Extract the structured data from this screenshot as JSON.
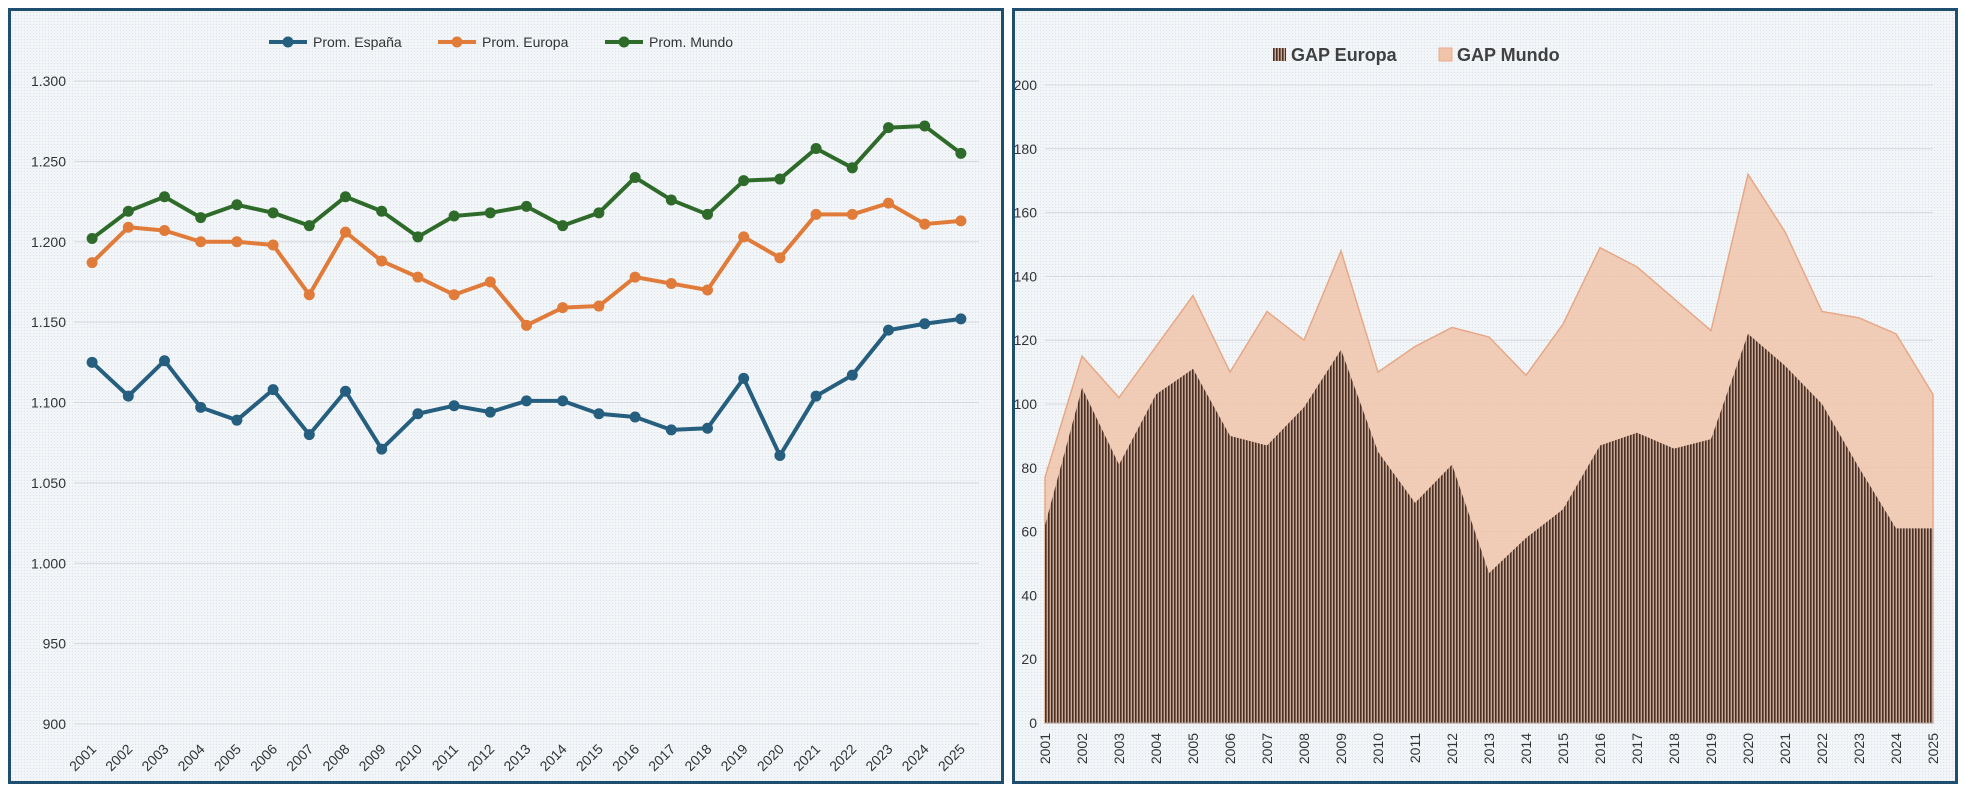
{
  "chart_data": [
    {
      "type": "line",
      "title": "",
      "xlabel": "",
      "ylabel": "",
      "ylim": [
        900,
        1300
      ],
      "yticks": [
        "1.300",
        "1.250",
        "1.200",
        "1.150",
        "1.100",
        "1.050",
        "1.000",
        "950",
        "900"
      ],
      "ytick_values": [
        1300,
        1250,
        1200,
        1150,
        1100,
        1050,
        1000,
        950,
        900
      ],
      "categories": [
        "2001",
        "2002",
        "2003",
        "2004",
        "2005",
        "2006",
        "2007",
        "2008",
        "2009",
        "2010",
        "2011",
        "2012",
        "2013",
        "2014",
        "2015",
        "2016",
        "2017",
        "2018",
        "2019",
        "2020",
        "2021",
        "2022",
        "2023",
        "2024",
        "2025"
      ],
      "legend_position": "top",
      "series": [
        {
          "name": "Prom. España",
          "color": "#255e7e",
          "values": [
            1125,
            1104,
            1126,
            1097,
            1089,
            1108,
            1080,
            1107,
            1071,
            1093,
            1098,
            1094,
            1101,
            1101,
            1093,
            1091,
            1083,
            1084,
            1115,
            1067,
            1104,
            1117,
            1145,
            1149,
            1152
          ]
        },
        {
          "name": "Prom. Europa",
          "color": "#e07b39",
          "values": [
            1187,
            1209,
            1207,
            1200,
            1200,
            1198,
            1167,
            1206,
            1188,
            1178,
            1167,
            1175,
            1148,
            1159,
            1160,
            1178,
            1174,
            1170,
            1203,
            1190,
            1217,
            1217,
            1224,
            1211,
            1213
          ]
        },
        {
          "name": "Prom. Mundo",
          "color": "#2e6b2a",
          "values": [
            1202,
            1219,
            1228,
            1215,
            1223,
            1218,
            1210,
            1228,
            1219,
            1203,
            1216,
            1218,
            1222,
            1210,
            1218,
            1240,
            1226,
            1217,
            1238,
            1239,
            1258,
            1246,
            1271,
            1272,
            1255
          ]
        }
      ]
    },
    {
      "type": "area",
      "title": "",
      "xlabel": "",
      "ylabel": "",
      "ylim": [
        0,
        200
      ],
      "yticks": [
        "200",
        "180",
        "160",
        "140",
        "120",
        "100",
        "80",
        "60",
        "40",
        "20",
        "0"
      ],
      "ytick_values": [
        200,
        180,
        160,
        140,
        120,
        100,
        80,
        60,
        40,
        20,
        0
      ],
      "categories": [
        "2001",
        "2002",
        "2003",
        "2004",
        "2005",
        "2006",
        "2007",
        "2008",
        "2009",
        "2010",
        "2011",
        "2012",
        "2013",
        "2014",
        "2015",
        "2016",
        "2017",
        "2018",
        "2019",
        "2020",
        "2021",
        "2022",
        "2023",
        "2024",
        "2025"
      ],
      "legend_position": "top",
      "series": [
        {
          "name": "GAP Europa",
          "color": "#5a3a2e",
          "values": [
            62,
            105,
            81,
            103,
            111,
            90,
            87,
            99,
            117,
            85,
            69,
            81,
            47,
            58,
            67,
            87,
            91,
            86,
            89,
            122,
            112,
            100,
            80,
            61,
            61
          ]
        },
        {
          "name": "GAP Mundo",
          "color": "#f0c4aa",
          "values": [
            77,
            115,
            102,
            118,
            134,
            110,
            129,
            120,
            148,
            110,
            118,
            124,
            121,
            109,
            125,
            149,
            143,
            133,
            123,
            172,
            154,
            129,
            127,
            122,
            103
          ]
        }
      ]
    }
  ]
}
